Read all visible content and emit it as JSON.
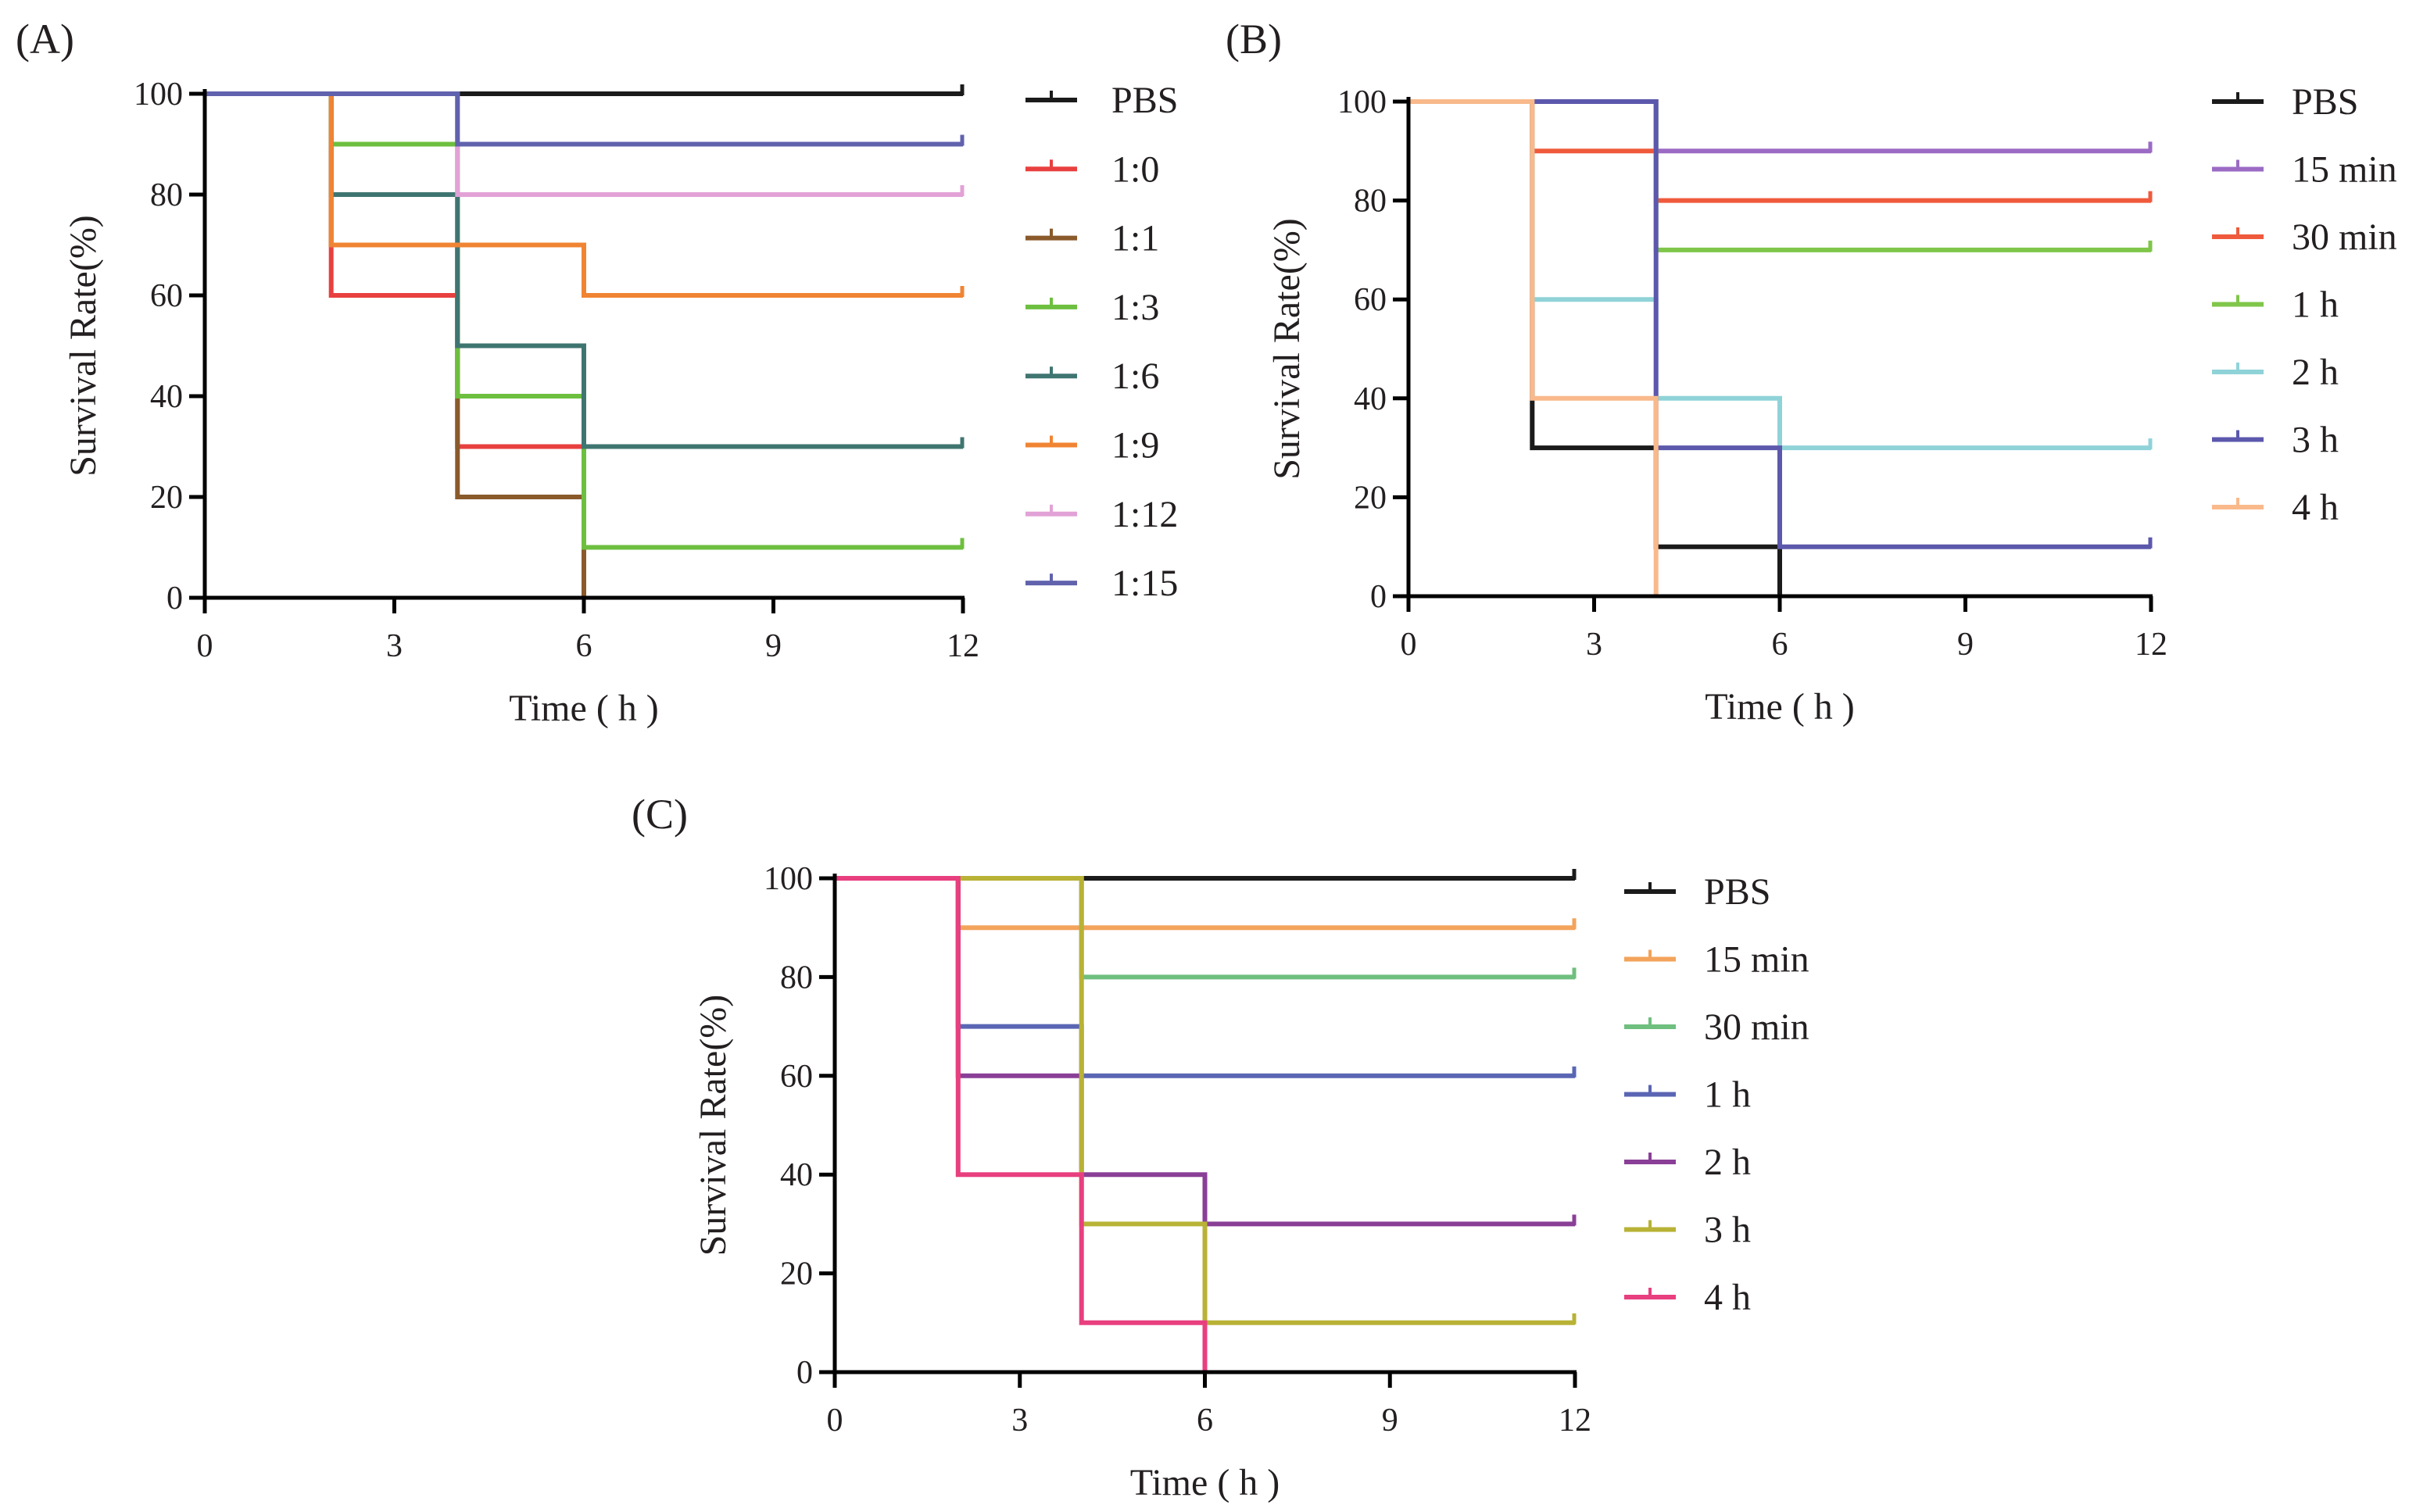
{
  "chart_data": [
    {
      "panel": "(A)",
      "type": "line",
      "step": true,
      "xlabel": "Time ( h )",
      "ylabel": "Survival Rate(%)",
      "xlim": [
        0,
        12
      ],
      "ylim": [
        0,
        100
      ],
      "xticks": [
        "0",
        "3",
        "6",
        "9",
        "12"
      ],
      "yticks": [
        "0",
        "20",
        "40",
        "60",
        "80",
        "100"
      ],
      "series": [
        {
          "name": "PBS",
          "color": "#1b1b1b",
          "x": [
            0,
            12
          ],
          "y": [
            100,
            100
          ]
        },
        {
          "name": "1:0",
          "color": "#e8403f",
          "x": [
            0,
            2,
            4,
            6,
            6
          ],
          "y": [
            100,
            60,
            30,
            0,
            0
          ]
        },
        {
          "name": "1:1",
          "color": "#8a5a2b",
          "x": [
            0,
            2,
            4,
            6
          ],
          "y": [
            100,
            70,
            20,
            0
          ]
        },
        {
          "name": "1:3",
          "color": "#6dbf3f",
          "x": [
            0,
            2,
            4,
            6,
            12
          ],
          "y": [
            100,
            90,
            40,
            10,
            10
          ]
        },
        {
          "name": "1:6",
          "color": "#3f7571",
          "x": [
            0,
            2,
            4,
            6,
            12
          ],
          "y": [
            100,
            80,
            50,
            30,
            30
          ]
        },
        {
          "name": "1:9",
          "color": "#f08433",
          "x": [
            0,
            2,
            6,
            12
          ],
          "y": [
            100,
            70,
            60,
            60
          ]
        },
        {
          "name": "1:12",
          "color": "#e2a2d6",
          "x": [
            0,
            4,
            12
          ],
          "y": [
            100,
            80,
            80
          ]
        },
        {
          "name": "1:15",
          "color": "#6062ad",
          "x": [
            0,
            4,
            12
          ],
          "y": [
            100,
            90,
            90
          ]
        }
      ]
    },
    {
      "panel": "(B)",
      "type": "line",
      "step": true,
      "xlabel": "Time ( h )",
      "ylabel": "Survival Rate(%)",
      "xlim": [
        0,
        12
      ],
      "ylim": [
        0,
        100
      ],
      "xticks": [
        "0",
        "3",
        "6",
        "9",
        "12"
      ],
      "yticks": [
        "0",
        "20",
        "40",
        "60",
        "80",
        "100"
      ],
      "series": [
        {
          "name": "PBS",
          "color": "#1b1b1b",
          "x": [
            0,
            2,
            4,
            6
          ],
          "y": [
            100,
            30,
            10,
            0
          ]
        },
        {
          "name": "15 min",
          "color": "#9b6bc4",
          "x": [
            0,
            4,
            12
          ],
          "y": [
            100,
            90,
            90
          ]
        },
        {
          "name": "30 min",
          "color": "#ef5a3c",
          "x": [
            0,
            2,
            4,
            12
          ],
          "y": [
            100,
            90,
            80,
            80
          ]
        },
        {
          "name": "1 h",
          "color": "#7fc64a",
          "x": [
            0,
            4,
            12
          ],
          "y": [
            100,
            70,
            70
          ]
        },
        {
          "name": "2 h",
          "color": "#8fd3d8",
          "x": [
            0,
            2,
            4,
            6,
            12
          ],
          "y": [
            100,
            60,
            40,
            30,
            30
          ]
        },
        {
          "name": "3 h",
          "color": "#5c58ac",
          "x": [
            0,
            4,
            6,
            12
          ],
          "y": [
            100,
            30,
            10,
            10
          ]
        },
        {
          "name": "4 h",
          "color": "#f9b98b",
          "x": [
            0,
            2,
            4
          ],
          "y": [
            100,
            40,
            0
          ]
        }
      ]
    },
    {
      "panel": "(C)",
      "type": "line",
      "step": true,
      "xlabel": "Time ( h )",
      "ylabel": "Survival Rate(%)",
      "xlim": [
        0,
        12
      ],
      "ylim": [
        0,
        100
      ],
      "xticks": [
        "0",
        "3",
        "6",
        "9",
        "12"
      ],
      "yticks": [
        "0",
        "20",
        "40",
        "60",
        "80",
        "100"
      ],
      "series": [
        {
          "name": "PBS",
          "color": "#1b1b1b",
          "x": [
            0,
            12
          ],
          "y": [
            100,
            100
          ]
        },
        {
          "name": "15 min",
          "color": "#f3a35b",
          "x": [
            0,
            2,
            12
          ],
          "y": [
            100,
            90,
            90
          ]
        },
        {
          "name": "30 min",
          "color": "#6fbf7f",
          "x": [
            0,
            4,
            12
          ],
          "y": [
            100,
            80,
            80
          ]
        },
        {
          "name": "1 h",
          "color": "#5a66b3",
          "x": [
            0,
            2,
            4,
            12
          ],
          "y": [
            100,
            70,
            60,
            60
          ]
        },
        {
          "name": "2 h",
          "color": "#8a3f97",
          "x": [
            0,
            2,
            4,
            6,
            12
          ],
          "y": [
            100,
            60,
            40,
            30,
            30
          ]
        },
        {
          "name": "3 h",
          "color": "#b8b236",
          "x": [
            0,
            4,
            6,
            12
          ],
          "y": [
            100,
            30,
            10,
            10
          ]
        },
        {
          "name": "4 h",
          "color": "#e83f7f",
          "x": [
            0,
            2,
            4,
            6
          ],
          "y": [
            100,
            40,
            10,
            0
          ]
        }
      ]
    }
  ]
}
